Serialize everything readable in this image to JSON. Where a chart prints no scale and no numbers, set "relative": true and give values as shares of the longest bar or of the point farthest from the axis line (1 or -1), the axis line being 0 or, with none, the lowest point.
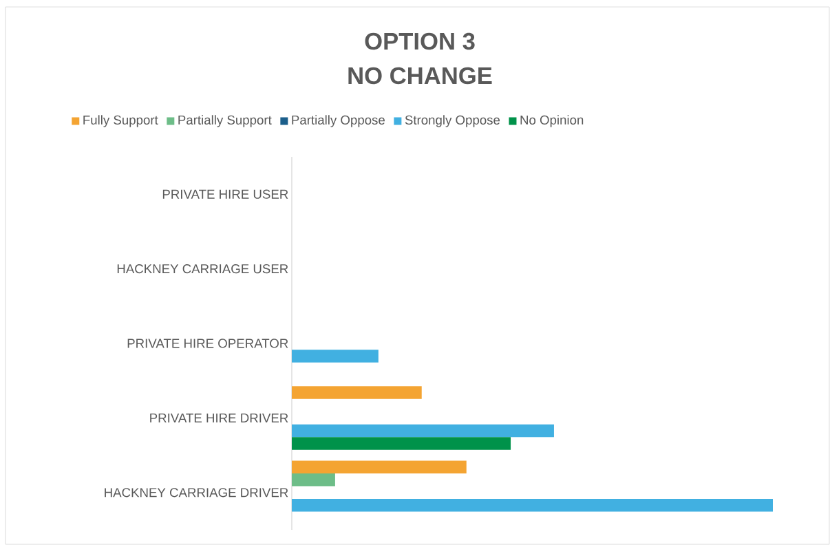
{
  "chart_data": {
    "type": "bar",
    "orientation": "horizontal",
    "relative": true,
    "title": "OPTION 3",
    "subtitle": "NO CHANGE",
    "categories": [
      "PRIVATE HIRE USER",
      "HACKNEY CARRIAGE USER",
      "PRIVATE HIRE OPERATOR",
      "PRIVATE HIRE DRIVER",
      "HACKNEY CARRIAGE DRIVER"
    ],
    "series": [
      {
        "name": "Fully Support",
        "color": "#f4a432",
        "values": [
          null,
          null,
          null,
          0.27,
          0.363
        ]
      },
      {
        "name": "Partially Support",
        "color": "#6dbd88",
        "values": [
          null,
          null,
          null,
          null,
          0.09
        ]
      },
      {
        "name": "Partially Oppose",
        "color": "#1c5f8b",
        "values": [
          null,
          null,
          null,
          null,
          null
        ]
      },
      {
        "name": "Strongly Oppose",
        "color": "#41b0e1",
        "values": [
          null,
          null,
          0.18,
          0.545,
          1.0
        ]
      },
      {
        "name": "No Opinion",
        "color": "#00924a",
        "values": [
          null,
          null,
          null,
          0.455,
          null
        ]
      }
    ],
    "legend": "top"
  }
}
